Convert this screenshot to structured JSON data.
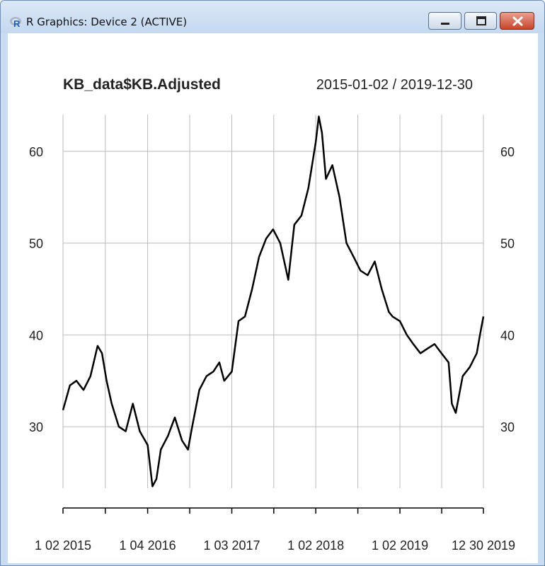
{
  "window": {
    "title": "R Graphics: Device 2 (ACTIVE)",
    "app_icon": "r-logo-icon",
    "buttons": [
      "minimize-icon",
      "maximize-icon",
      "close-icon"
    ]
  },
  "chart_data": {
    "type": "line",
    "title": "KB_data$KB.Adjusted",
    "date_range": "2015-01-02 / 2019-12-30",
    "x_tick_labels": [
      "1 02 2015",
      "1 04 2016",
      "1 03 2017",
      "1 02 2018",
      "1 02 2019",
      "12 30 2019"
    ],
    "y_tick_labels": [
      "30",
      "40",
      "50",
      "60"
    ],
    "y_ticks": [
      30,
      40,
      50,
      60
    ],
    "ylim": [
      23.3,
      64
    ],
    "xlim": [
      "2015-01-02",
      "2019-12-30"
    ],
    "x_tick_dates": [
      "2015-01-02",
      "2016-01-04",
      "2017-01-03",
      "2018-01-02",
      "2019-01-02",
      "2019-12-30"
    ],
    "grid": true,
    "line_color": "#000000",
    "grid_color": "#bbbbbb",
    "series": [
      {
        "x": [
          "2015-01-02",
          "2015-02-01",
          "2015-03-01",
          "2015-04-01",
          "2015-05-01",
          "2015-06-01",
          "2015-06-20",
          "2015-07-10",
          "2015-08-01",
          "2015-09-01",
          "2015-10-01",
          "2015-11-01",
          "2015-12-01",
          "2016-01-04",
          "2016-01-25",
          "2016-02-11",
          "2016-03-01",
          "2016-04-01",
          "2016-05-01",
          "2016-06-01",
          "2016-06-27",
          "2016-07-15",
          "2016-08-15",
          "2016-09-15",
          "2016-10-15",
          "2016-11-10",
          "2016-12-01",
          "2017-01-03",
          "2017-02-01",
          "2017-03-01",
          "2017-04-01",
          "2017-05-01",
          "2017-06-01",
          "2017-07-01",
          "2017-08-01",
          "2017-09-05",
          "2017-10-01",
          "2017-11-01",
          "2017-12-01",
          "2018-01-02",
          "2018-01-15",
          "2018-01-29",
          "2018-02-15",
          "2018-03-15",
          "2018-04-15",
          "2018-05-15",
          "2018-06-15",
          "2018-07-15",
          "2018-08-15",
          "2018-09-15",
          "2018-10-15",
          "2018-11-15",
          "2018-12-01",
          "2019-01-02",
          "2019-02-01",
          "2019-03-01",
          "2019-04-01",
          "2019-05-01",
          "2019-06-01",
          "2019-07-01",
          "2019-08-01",
          "2019-08-15",
          "2019-09-01",
          "2019-10-01",
          "2019-11-01",
          "2019-12-01",
          "2019-12-15",
          "2019-12-30"
        ],
        "y": [
          31.8,
          34.5,
          35.0,
          34.0,
          35.5,
          38.8,
          38.0,
          35.0,
          32.5,
          30.0,
          29.5,
          32.5,
          29.5,
          28.0,
          23.5,
          24.3,
          27.5,
          29.0,
          31.0,
          28.5,
          27.5,
          30.0,
          34.0,
          35.5,
          36.0,
          37.0,
          35.0,
          36.0,
          41.5,
          42.0,
          45.0,
          48.5,
          50.5,
          51.5,
          50.0,
          46.0,
          52.0,
          53.0,
          56.0,
          61.0,
          63.8,
          62.0,
          57.0,
          58.5,
          55.0,
          50.0,
          48.5,
          47.0,
          46.5,
          48.0,
          45.0,
          42.5,
          42.0,
          41.5,
          40.0,
          39.0,
          38.0,
          38.5,
          39.0,
          38.0,
          37.0,
          32.5,
          31.5,
          35.5,
          36.5,
          38.0,
          40.0,
          42.0
        ]
      }
    ]
  }
}
